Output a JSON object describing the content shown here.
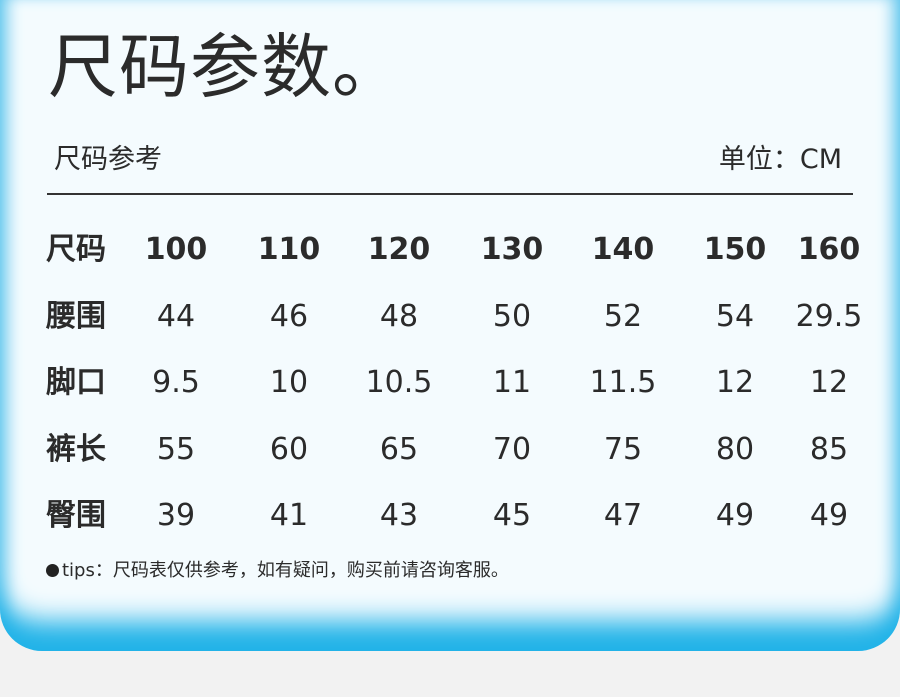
{
  "title": "尺码参数。",
  "subtitle": "尺码参考",
  "unit": "单位：CM",
  "table": {
    "header": {
      "label": "尺码",
      "values": [
        "100",
        "110",
        "120",
        "130",
        "140",
        "150",
        "160"
      ]
    },
    "rows": [
      {
        "label": "腰围",
        "values": [
          "44",
          "46",
          "48",
          "50",
          "52",
          "54",
          "29.5"
        ]
      },
      {
        "label": "脚口",
        "values": [
          "9.5",
          "10",
          "10.5",
          "11",
          "11.5",
          "12",
          "12"
        ]
      },
      {
        "label": "裤长",
        "values": [
          "55",
          "60",
          "65",
          "70",
          "75",
          "80",
          "85"
        ]
      },
      {
        "label": "臀围",
        "values": [
          "39",
          "41",
          "43",
          "45",
          "47",
          "49",
          "49"
        ]
      }
    ]
  },
  "tips": "tips：尺码表仅供参考，如有疑问，购买前请咨询客服。",
  "colors": {
    "accent": "#22b3e8",
    "card": "#f4fbfe",
    "text": "#2b2b2b"
  }
}
